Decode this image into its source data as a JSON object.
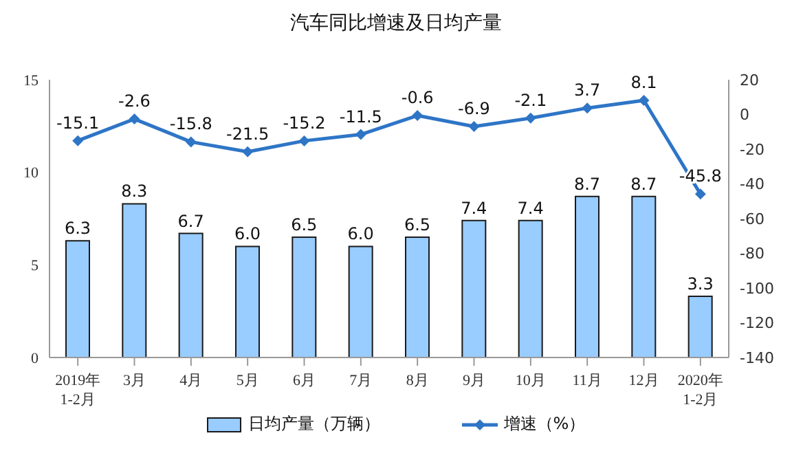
{
  "chart_data": {
    "type": "bar",
    "title": "汽车同比增速及日均产量",
    "categories": [
      "2019年\n1-2月",
      "3月",
      "4月",
      "5月",
      "6月",
      "7月",
      "8月",
      "9月",
      "10月",
      "11月",
      "12月",
      "2020年\n1-2月"
    ],
    "series": [
      {
        "name": "日均产量（万辆）",
        "color": "#99ccff",
        "values": [
          6.3,
          8.3,
          6.7,
          6.0,
          6.5,
          6.0,
          6.5,
          7.4,
          7.4,
          8.7,
          8.7,
          3.3
        ],
        "value_labels": [
          "6.3",
          "8.3",
          "6.7",
          "6.0",
          "6.5",
          "6.0",
          "6.5",
          "7.4",
          "7.4",
          "8.7",
          "8.7",
          "3.3"
        ]
      },
      {
        "name": "增速（%）",
        "type": "line",
        "axis": "y2",
        "color": "#2e75c6",
        "values": [
          -15.1,
          -2.6,
          -15.8,
          -21.5,
          -15.2,
          -11.5,
          -0.6,
          -6.9,
          -2.1,
          3.7,
          8.1,
          -45.8
        ]
      }
    ],
    "ylim": [
      0,
      15
    ],
    "yticks": [
      0,
      5,
      10,
      15
    ],
    "y2lim": [
      -140,
      20
    ],
    "y2ticks": [
      -140,
      -120,
      -100,
      -80,
      -60,
      -40,
      -20,
      0,
      20
    ],
    "data_labels": true,
    "legend": "bottom",
    "marker": "diamond"
  }
}
